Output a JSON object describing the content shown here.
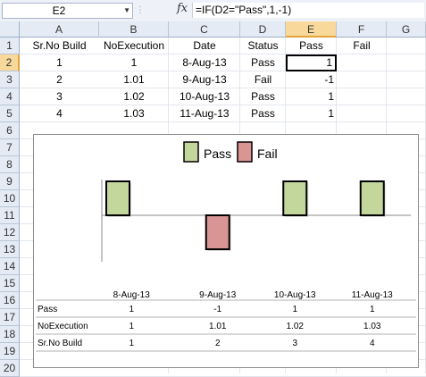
{
  "formula_bar": {
    "name_box": "E2",
    "fx_symbol": "fx",
    "formula": "=IF(D2=\"Pass\",1,-1)"
  },
  "columns": [
    "A",
    "B",
    "C",
    "D",
    "E",
    "F",
    "G"
  ],
  "rows": [
    "1",
    "2",
    "3",
    "4",
    "5",
    "6",
    "7",
    "8",
    "9",
    "10",
    "11",
    "12",
    "13",
    "14",
    "15",
    "16",
    "17",
    "18",
    "19",
    "20"
  ],
  "sheet": {
    "headers": [
      "Sr.No Build",
      "NoExecution",
      "Date",
      "Status",
      "Pass",
      "Fail"
    ],
    "data": [
      [
        "1",
        "1",
        "8-Aug-13",
        "Pass",
        "1"
      ],
      [
        "2",
        "1.01",
        "9-Aug-13",
        "Fail",
        "-1"
      ],
      [
        "3",
        "1.02",
        "10-Aug-13",
        "Pass",
        "1"
      ],
      [
        "4",
        "1.03",
        "11-Aug-13",
        "Pass",
        "1"
      ]
    ]
  },
  "colors": {
    "pass_fill": "#c3d69b",
    "fail_fill": "#d99594",
    "bar_border": "#000000",
    "selection": "#f9d99b"
  },
  "chart_data": {
    "type": "bar",
    "categories": [
      "8-Aug-13",
      "9-Aug-13",
      "10-Aug-13",
      "11-Aug-13"
    ],
    "series": [
      {
        "name": "Pass",
        "values": [
          1,
          -1,
          1,
          1
        ]
      }
    ],
    "bar_colors": [
      "#c3d69b",
      "#d99594",
      "#c3d69b",
      "#c3d69b"
    ],
    "legend": {
      "position": "top",
      "entries": [
        {
          "label": "Pass",
          "color": "#c3d69b"
        },
        {
          "label": "Fail",
          "color": "#d99594"
        }
      ]
    },
    "data_table": [
      {
        "label": "Pass",
        "values": [
          "1",
          "-1",
          "1",
          "1"
        ]
      },
      {
        "label": "NoExecution",
        "values": [
          "1",
          "1.01",
          "1.02",
          "1.03"
        ]
      },
      {
        "label": "Sr.No Build",
        "values": [
          "1",
          "2",
          "3",
          "4"
        ]
      }
    ],
    "ylim": [
      -1,
      1
    ],
    "grid": false
  }
}
